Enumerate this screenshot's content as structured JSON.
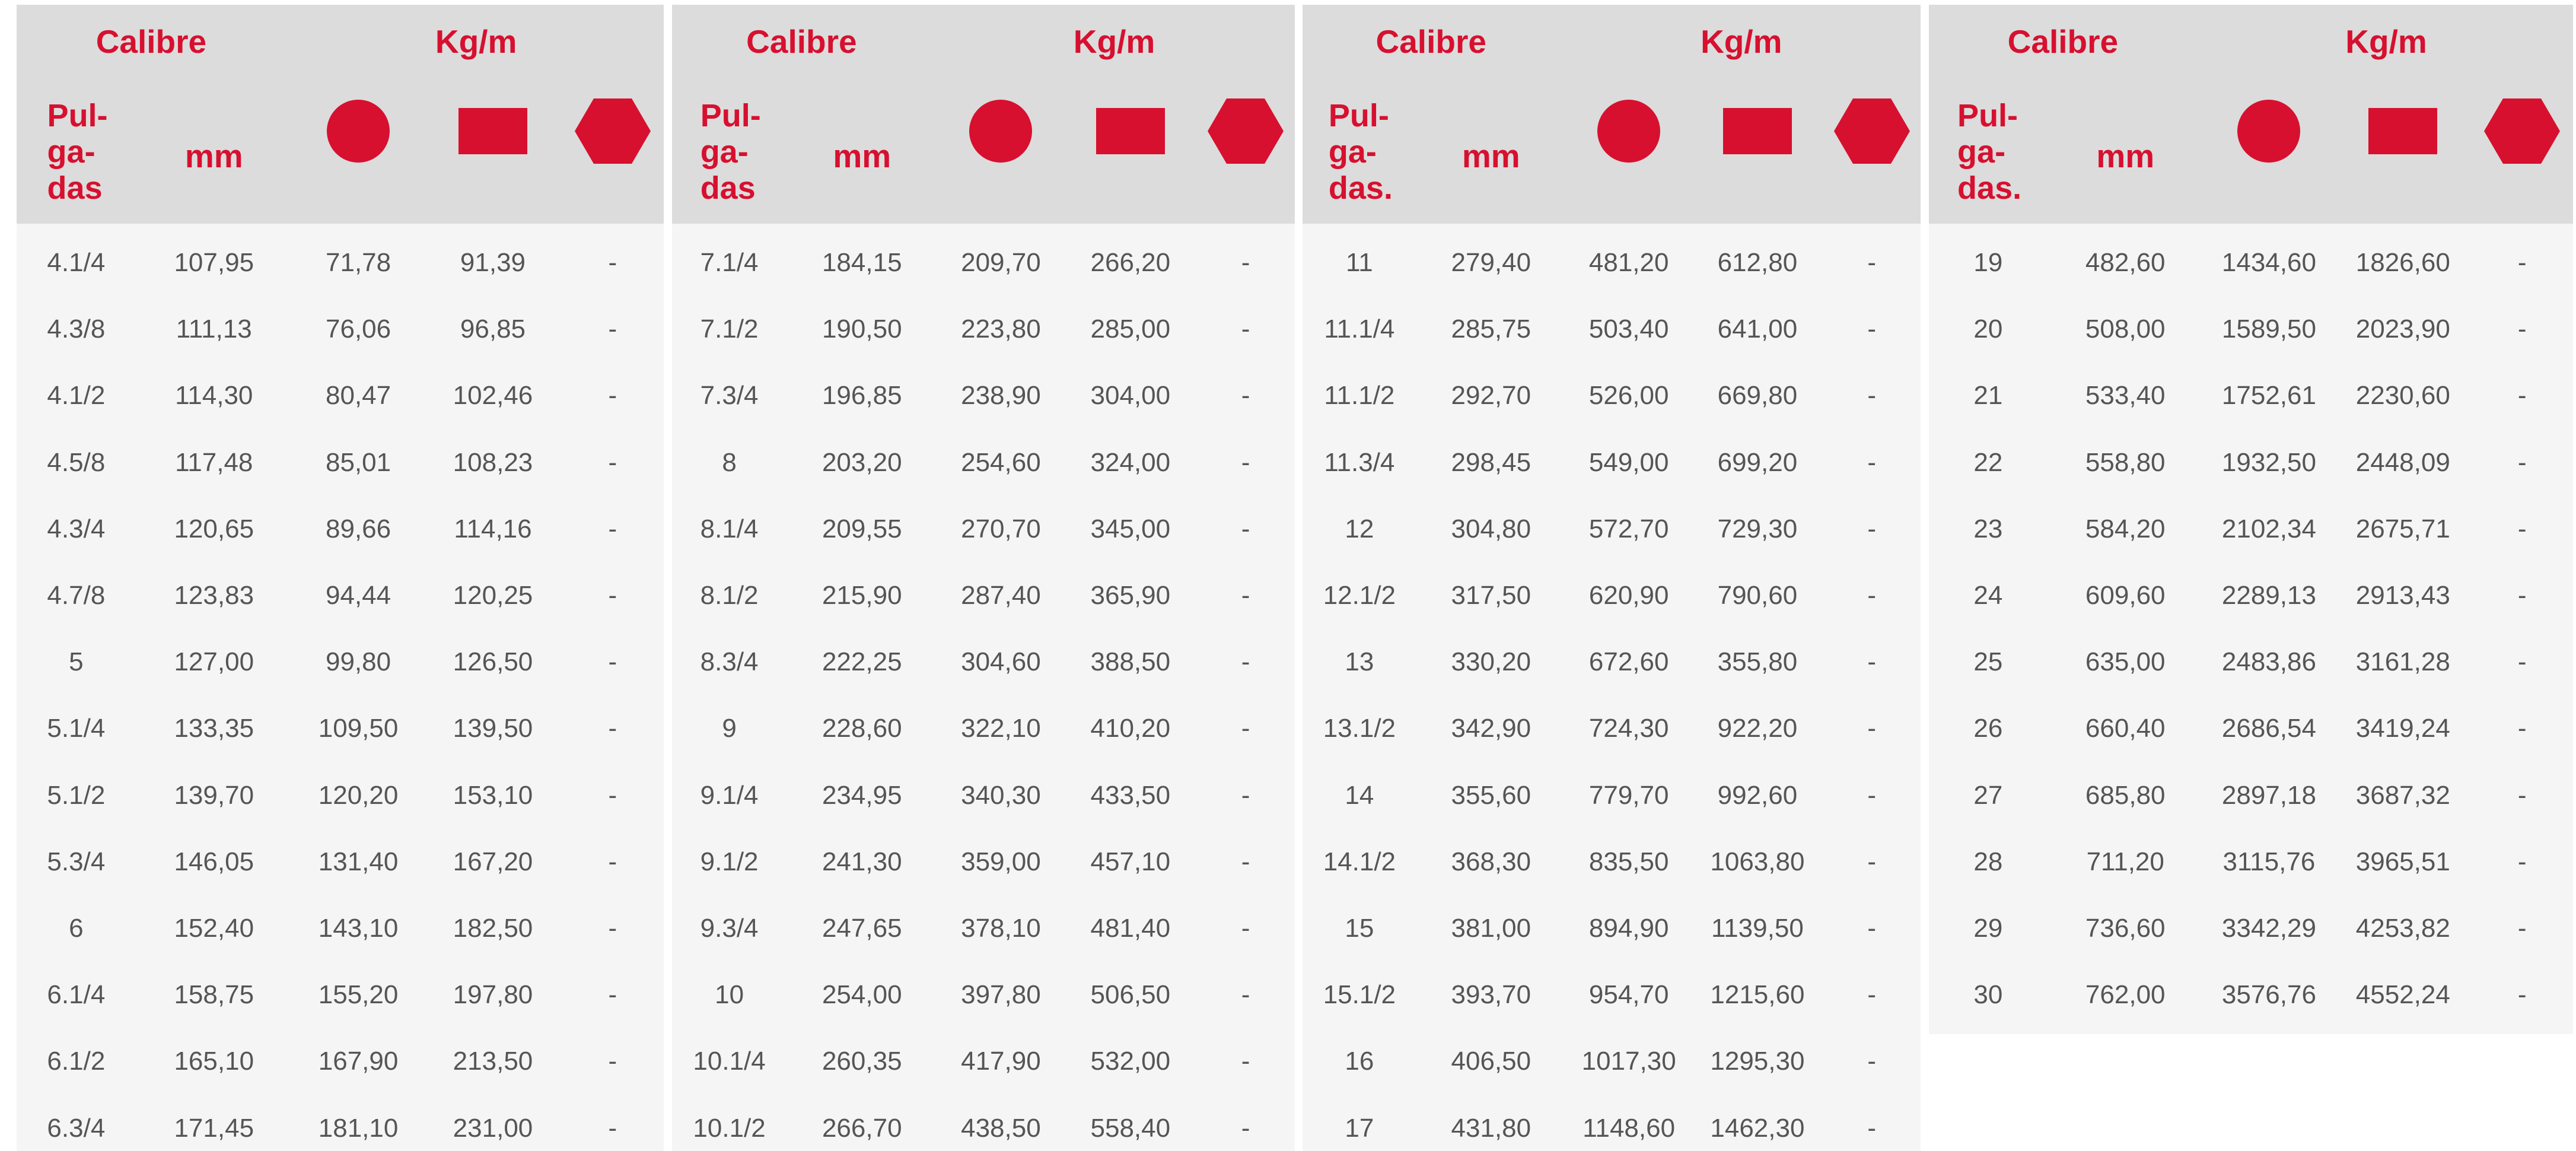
{
  "tables": [
    {
      "header": {
        "calibre": "Calibre",
        "kgm": "Kg/m",
        "pulgadas": [
          "Pul-",
          "ga-",
          "das"
        ],
        "mm": "mm"
      },
      "rows": [
        [
          "4.1/4",
          "107,95",
          "71,78",
          "91,39",
          "-"
        ],
        [
          "4.3/8",
          "111,13",
          "76,06",
          "96,85",
          "-"
        ],
        [
          "4.1/2",
          "114,30",
          "80,47",
          "102,46",
          "-"
        ],
        [
          "4.5/8",
          "117,48",
          "85,01",
          "108,23",
          "-"
        ],
        [
          "4.3/4",
          "120,65",
          "89,66",
          "114,16",
          "-"
        ],
        [
          "4.7/8",
          "123,83",
          "94,44",
          "120,25",
          "-"
        ],
        [
          "5",
          "127,00",
          "99,80",
          "126,50",
          "-"
        ],
        [
          "5.1/4",
          "133,35",
          "109,50",
          "139,50",
          "-"
        ],
        [
          "5.1/2",
          "139,70",
          "120,20",
          "153,10",
          "-"
        ],
        [
          "5.3/4",
          "146,05",
          "131,40",
          "167,20",
          "-"
        ],
        [
          "6",
          "152,40",
          "143,10",
          "182,50",
          "-"
        ],
        [
          "6.1/4",
          "158,75",
          "155,20",
          "197,80",
          "-"
        ],
        [
          "6.1/2",
          "165,10",
          "167,90",
          "213,50",
          "-"
        ],
        [
          "6.3/4",
          "171,45",
          "181,10",
          "231,00",
          "-"
        ]
      ]
    },
    {
      "header": {
        "calibre": "Calibre",
        "kgm": "Kg/m",
        "pulgadas": [
          "Pul-",
          "ga-",
          "das"
        ],
        "mm": "mm"
      },
      "rows": [
        [
          "7.1/4",
          "184,15",
          "209,70",
          "266,20",
          "-"
        ],
        [
          "7.1/2",
          "190,50",
          "223,80",
          "285,00",
          "-"
        ],
        [
          "7.3/4",
          "196,85",
          "238,90",
          "304,00",
          "-"
        ],
        [
          "8",
          "203,20",
          "254,60",
          "324,00",
          "-"
        ],
        [
          "8.1/4",
          "209,55",
          "270,70",
          "345,00",
          "-"
        ],
        [
          "8.1/2",
          "215,90",
          "287,40",
          "365,90",
          "-"
        ],
        [
          "8.3/4",
          "222,25",
          "304,60",
          "388,50",
          "-"
        ],
        [
          "9",
          "228,60",
          "322,10",
          "410,20",
          "-"
        ],
        [
          "9.1/4",
          "234,95",
          "340,30",
          "433,50",
          "-"
        ],
        [
          "9.1/2",
          "241,30",
          "359,00",
          "457,10",
          "-"
        ],
        [
          "9.3/4",
          "247,65",
          "378,10",
          "481,40",
          "-"
        ],
        [
          "10",
          "254,00",
          "397,80",
          "506,50",
          "-"
        ],
        [
          "10.1/4",
          "260,35",
          "417,90",
          "532,00",
          "-"
        ],
        [
          "10.1/2",
          "266,70",
          "438,50",
          "558,40",
          "-"
        ]
      ]
    },
    {
      "header": {
        "calibre": "Calibre",
        "kgm": "Kg/m",
        "pulgadas": [
          "Pul-",
          "ga-",
          "das."
        ],
        "mm": "mm"
      },
      "rows": [
        [
          "11",
          "279,40",
          "481,20",
          "612,80",
          "-"
        ],
        [
          "11.1/4",
          "285,75",
          "503,40",
          "641,00",
          "-"
        ],
        [
          "11.1/2",
          "292,70",
          "526,00",
          "669,80",
          "-"
        ],
        [
          "11.3/4",
          "298,45",
          "549,00",
          "699,20",
          "-"
        ],
        [
          "12",
          "304,80",
          "572,70",
          "729,30",
          "-"
        ],
        [
          "12.1/2",
          "317,50",
          "620,90",
          "790,60",
          "-"
        ],
        [
          "13",
          "330,20",
          "672,60",
          "355,80",
          "-"
        ],
        [
          "13.1/2",
          "342,90",
          "724,30",
          "922,20",
          "-"
        ],
        [
          "14",
          "355,60",
          "779,70",
          "992,60",
          "-"
        ],
        [
          "14.1/2",
          "368,30",
          "835,50",
          "1063,80",
          "-"
        ],
        [
          "15",
          "381,00",
          "894,90",
          "1139,50",
          "-"
        ],
        [
          "15.1/2",
          "393,70",
          "954,70",
          "1215,60",
          "-"
        ],
        [
          "16",
          "406,50",
          "1017,30",
          "1295,30",
          "-"
        ],
        [
          "17",
          "431,80",
          "1148,60",
          "1462,30",
          "-"
        ]
      ]
    },
    {
      "header": {
        "calibre": "Calibre",
        "kgm": "Kg/m",
        "pulgadas": [
          "Pul-",
          "ga-",
          "das."
        ],
        "mm": "mm"
      },
      "rows": [
        [
          "19",
          "482,60",
          "1434,60",
          "1826,60",
          "-"
        ],
        [
          "20",
          "508,00",
          "1589,50",
          "2023,90",
          "-"
        ],
        [
          "21",
          "533,40",
          "1752,61",
          "2230,60",
          "-"
        ],
        [
          "22",
          "558,80",
          "1932,50",
          "2448,09",
          "-"
        ],
        [
          "23",
          "584,20",
          "2102,34",
          "2675,71",
          "-"
        ],
        [
          "24",
          "609,60",
          "2289,13",
          "2913,43",
          "-"
        ],
        [
          "25",
          "635,00",
          "2483,86",
          "3161,28",
          "-"
        ],
        [
          "26",
          "660,40",
          "2686,54",
          "3419,24",
          "-"
        ],
        [
          "27",
          "685,80",
          "2897,18",
          "3687,32",
          "-"
        ],
        [
          "28",
          "711,20",
          "3115,76",
          "3965,51",
          "-"
        ],
        [
          "29",
          "736,60",
          "3342,29",
          "4253,82",
          "-"
        ],
        [
          "30",
          "762,00",
          "3576,76",
          "4552,24",
          "-"
        ]
      ]
    }
  ]
}
